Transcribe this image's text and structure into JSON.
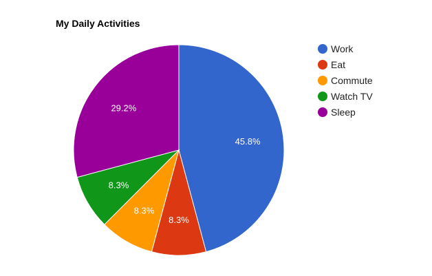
{
  "chart_data": {
    "type": "pie",
    "title": "My Daily Activities",
    "legend_position": "right",
    "slices": [
      {
        "name": "Work",
        "value": 11,
        "label": "45.8%",
        "color": "#3366cc"
      },
      {
        "name": "Eat",
        "value": 2,
        "label": "8.3%",
        "color": "#dc3912"
      },
      {
        "name": "Commute",
        "value": 2,
        "label": "8.3%",
        "color": "#ff9900"
      },
      {
        "name": "Watch TV",
        "value": 2,
        "label": "8.3%",
        "color": "#109618"
      },
      {
        "name": "Sleep",
        "value": 7,
        "label": "29.2%",
        "color": "#990099"
      }
    ]
  }
}
